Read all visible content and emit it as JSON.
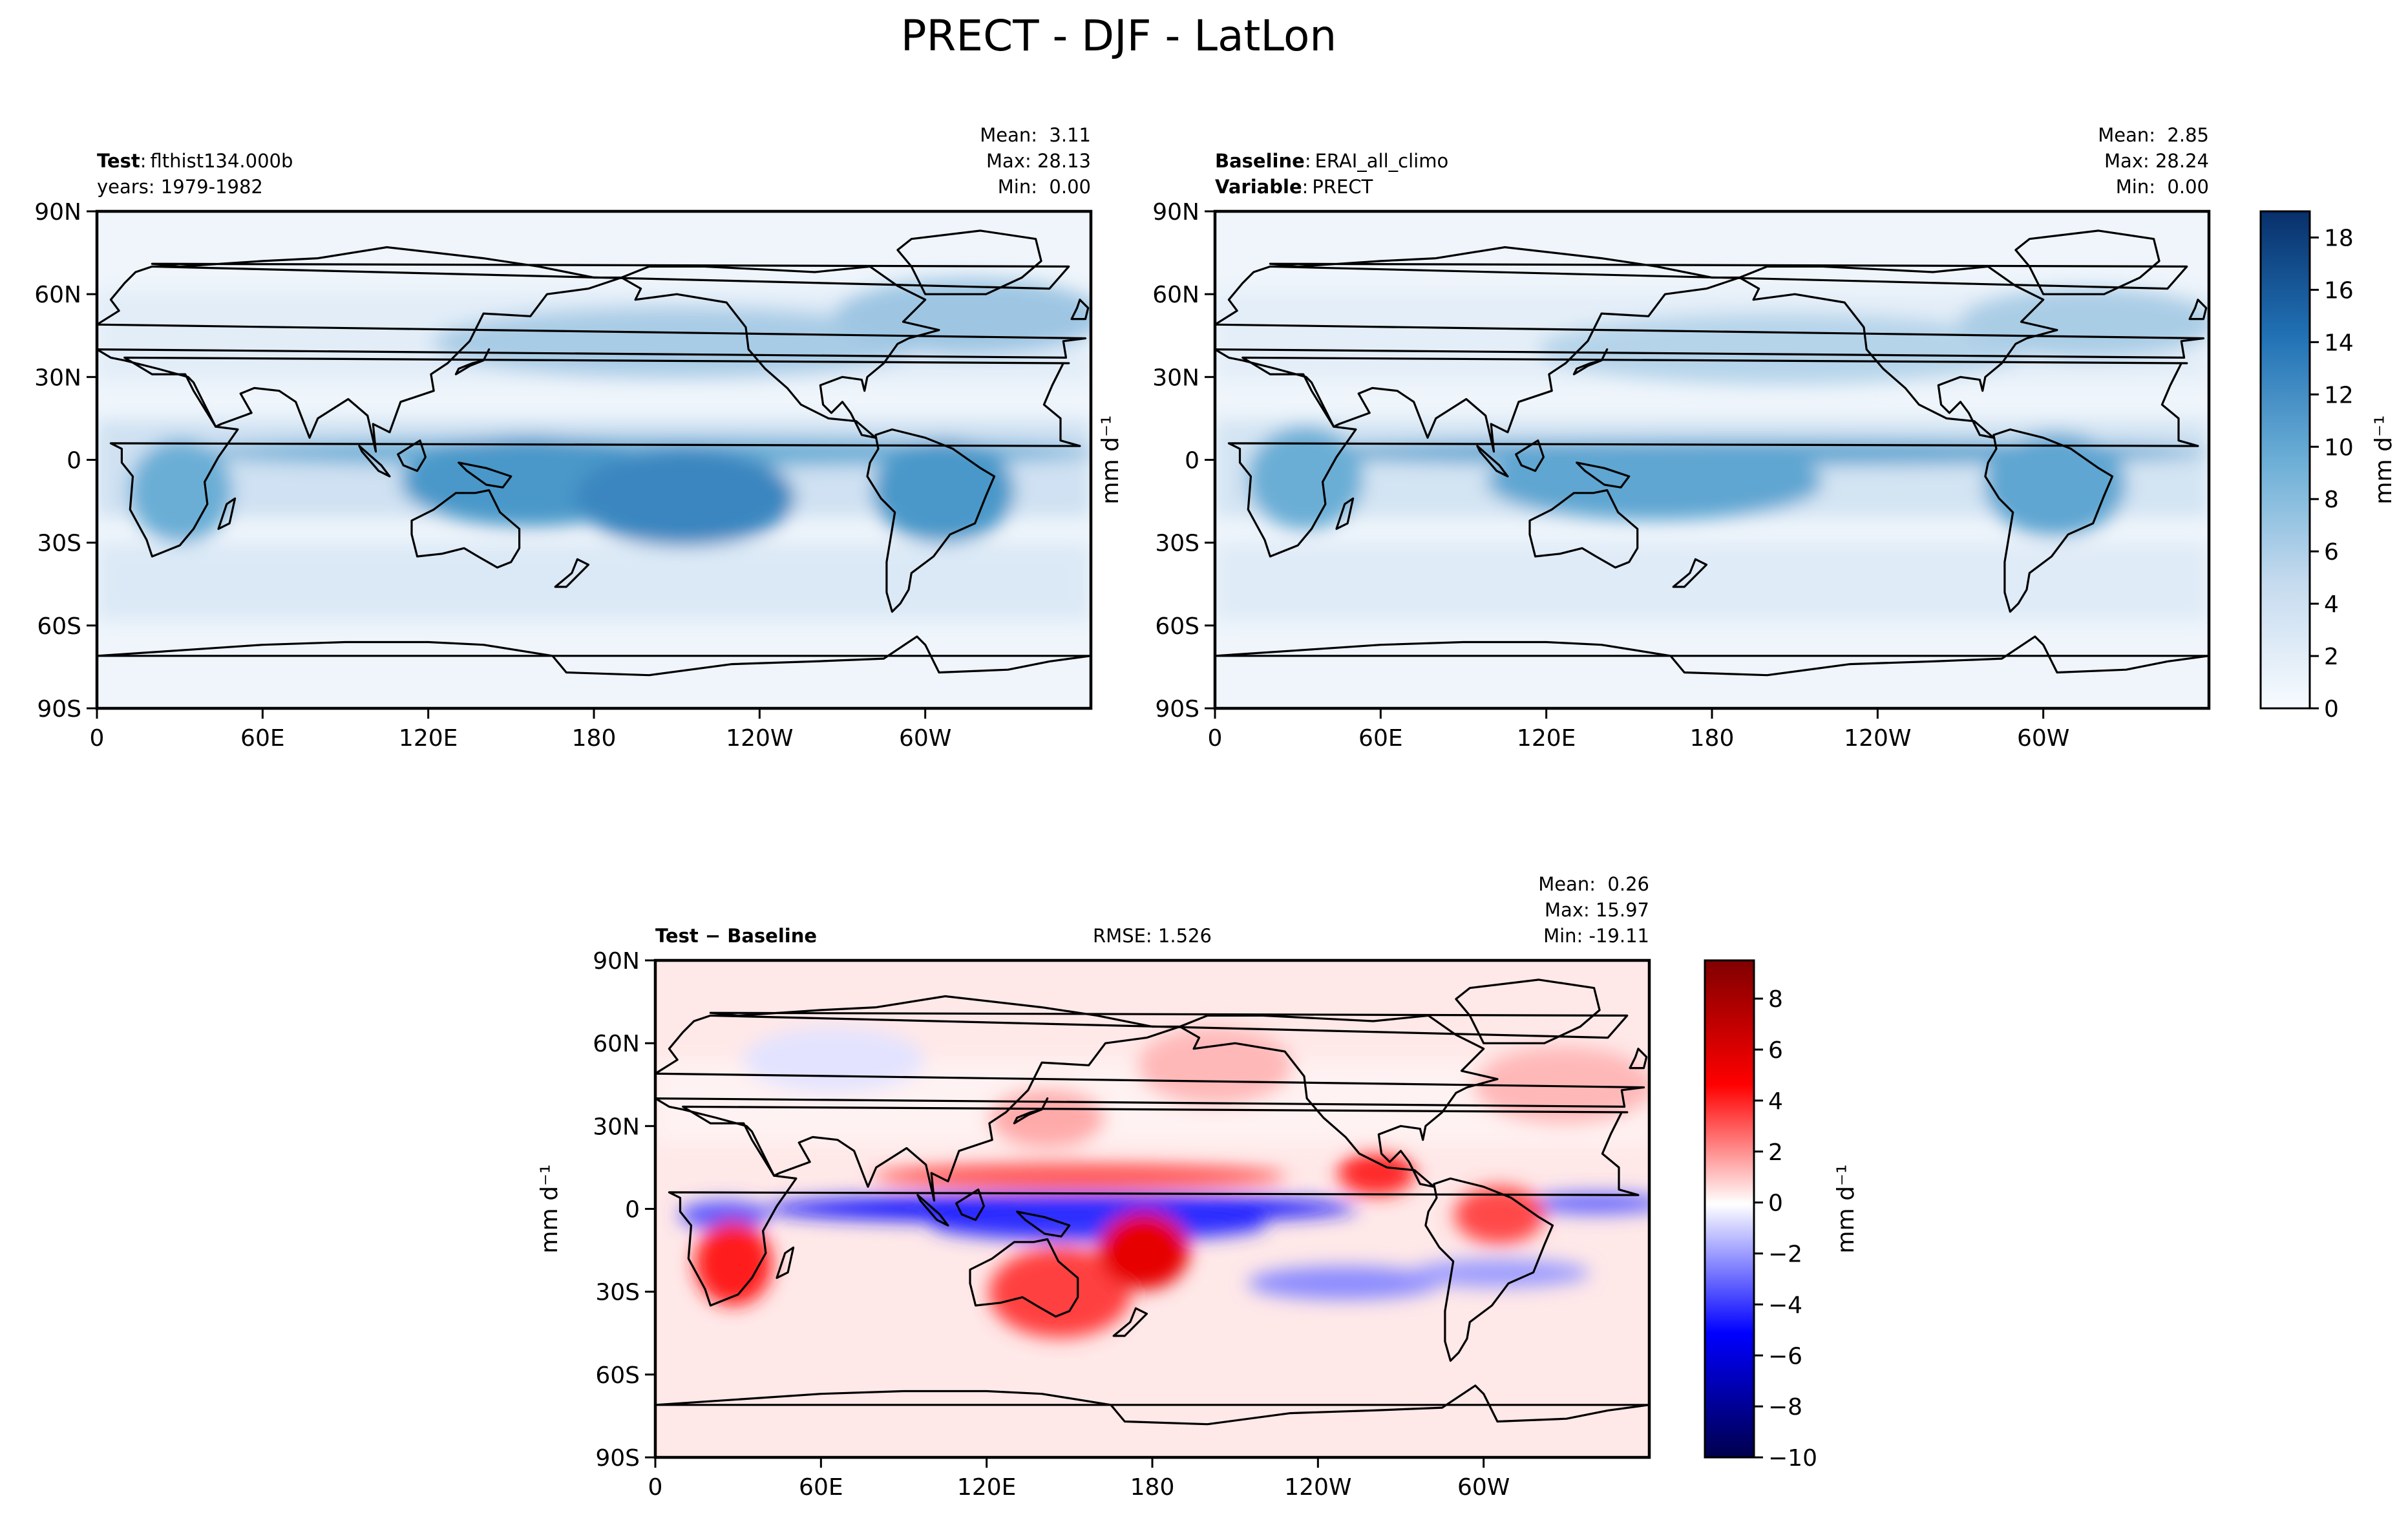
{
  "figure": {
    "title": "PRECT - DJF - LatLon"
  },
  "chart_data": [
    {
      "type": "heatmap",
      "panel": "test",
      "header_left": [
        {
          "key": "Test",
          "sep": ":",
          "value": "flthist134.000b"
        },
        {
          "key": "",
          "sep": "",
          "value": "years: 1979-1982"
        }
      ],
      "stats": [
        "Mean:  3.11",
        "Max: 28.13",
        "Min:  0.00"
      ],
      "xticks": [
        "0",
        "60E",
        "120E",
        "180",
        "120W",
        "60W"
      ],
      "yticks": [
        "90N",
        "60N",
        "30N",
        "0",
        "30S",
        "60S",
        "90S"
      ],
      "xlim": [
        0,
        360
      ],
      "ylim": [
        -90,
        90
      ],
      "colormap": "Blues",
      "xlabel": "",
      "ylabel": ""
    },
    {
      "type": "heatmap",
      "panel": "baseline",
      "header_left": [
        {
          "key": "Baseline",
          "sep": ":",
          "value": "ERAI_all_climo"
        },
        {
          "key": "Variable",
          "sep": ":",
          "value": "PRECT"
        }
      ],
      "stats": [
        "Mean:  2.85",
        "Max: 28.24",
        "Min:  0.00"
      ],
      "xticks": [
        "0",
        "60E",
        "120E",
        "180",
        "120W",
        "60W"
      ],
      "yticks": [
        "90N",
        "60N",
        "30N",
        "0",
        "30S",
        "60S",
        "90S"
      ],
      "xlim": [
        0,
        360
      ],
      "ylim": [
        -90,
        90
      ],
      "colormap": "Blues",
      "ylabel": "mm d⁻¹",
      "colorbar": {
        "label": "mm d⁻¹",
        "ticks": [
          "0",
          "2",
          "4",
          "6",
          "8",
          "10",
          "12",
          "14",
          "16",
          "18"
        ],
        "range": [
          0,
          19
        ],
        "low": "#f7fbff",
        "high": "#08306b"
      }
    },
    {
      "type": "heatmap",
      "panel": "difference",
      "header_left": [
        {
          "key": "Test − Baseline",
          "sep": "",
          "value": ""
        }
      ],
      "header_center": "RMSE: 1.526",
      "stats": [
        "Mean:  0.26",
        "Max: 15.97",
        "Min: -19.11"
      ],
      "xticks": [
        "0",
        "60E",
        "120E",
        "180",
        "120W",
        "60W"
      ],
      "yticks": [
        "90N",
        "60N",
        "30N",
        "0",
        "30S",
        "60S",
        "90S"
      ],
      "xlim": [
        0,
        360
      ],
      "ylim": [
        -90,
        90
      ],
      "colormap": "seismic",
      "ylabel": "mm d⁻¹",
      "colorbar": {
        "label": "mm d⁻¹",
        "ticks": [
          "−10",
          "−8",
          "−6",
          "−4",
          "−2",
          "0",
          "2",
          "4",
          "6",
          "8"
        ],
        "range": [
          -10,
          9.5
        ],
        "low": "#00004c",
        "mid": "#ffffff",
        "high": "#800000"
      }
    }
  ]
}
